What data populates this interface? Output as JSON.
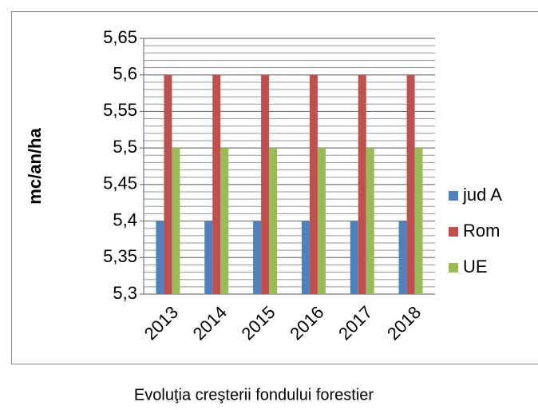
{
  "chart_data": {
    "type": "bar",
    "y_label": "mc/an/ha",
    "caption": "Evoluţia creşterii fondului forestier",
    "categories": [
      "2013",
      "2014",
      "2015",
      "2016",
      "2017",
      "2018"
    ],
    "series": [
      {
        "name": "jud A",
        "color": "#4f81bd",
        "values": [
          5.4,
          5.4,
          5.4,
          5.4,
          5.4,
          5.4
        ]
      },
      {
        "name": "Rom",
        "color": "#c0504d",
        "values": [
          5.6,
          5.6,
          5.6,
          5.6,
          5.6,
          5.6
        ]
      },
      {
        "name": "UE",
        "color": "#9bbb59",
        "values": [
          5.5,
          5.5,
          5.5,
          5.5,
          5.5,
          5.5
        ]
      }
    ],
    "ylim": [
      5.3,
      5.65
    ],
    "yticks": [
      {
        "value": 5.3,
        "label": "5,3"
      },
      {
        "value": 5.35,
        "label": "5,35"
      },
      {
        "value": 5.4,
        "label": "5,4"
      },
      {
        "value": 5.45,
        "label": "5,45"
      },
      {
        "value": 5.5,
        "label": "5,5"
      },
      {
        "value": 5.55,
        "label": "5,55"
      },
      {
        "value": 5.6,
        "label": "5,6"
      },
      {
        "value": 5.65,
        "label": "5,65"
      }
    ],
    "grid": true,
    "minor_grid": true,
    "legend": "right"
  }
}
